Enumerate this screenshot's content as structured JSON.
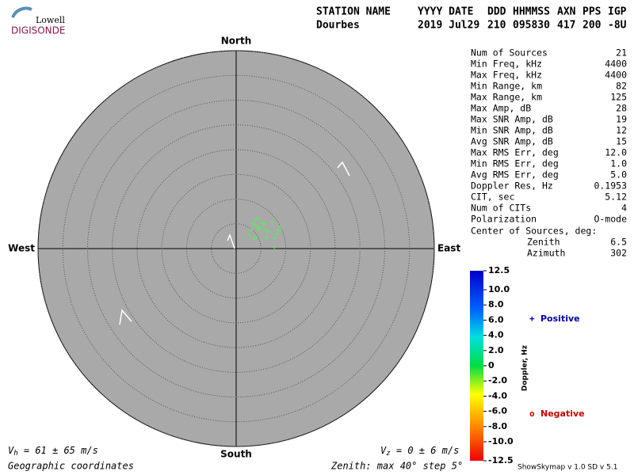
{
  "header": {
    "logo_top": "Lowell",
    "logo_bottom": "DIGISONDE",
    "labels": [
      "STATION NAME",
      "YYYY DATE",
      "DDD",
      "HHMMSS",
      "AXN",
      "PPS",
      "IGP"
    ],
    "values": [
      "Dourbes",
      "2019 Jul29",
      "210",
      "095830",
      "417",
      "200",
      "-8U"
    ]
  },
  "directions": {
    "north": "North",
    "south": "South",
    "east": "East",
    "west": "West"
  },
  "stats": [
    [
      "Num of Sources",
      "21"
    ],
    [
      "Min Freq, kHz",
      "4400"
    ],
    [
      "Max Freq, kHz",
      "4400"
    ],
    [
      "Min Range, km",
      "82"
    ],
    [
      "Max Range, km",
      "125"
    ],
    [
      "Max Amp, dB",
      "28"
    ],
    [
      "Max SNR Amp, dB",
      "19"
    ],
    [
      "Min SNR Amp, dB",
      "12"
    ],
    [
      "Avg SNR Amp, dB",
      "15"
    ],
    [
      "Max RMS Err, deg",
      "12.0"
    ],
    [
      "Min RMS Err, deg",
      "1.0"
    ],
    [
      "Avg RMS Err, deg",
      "5.0"
    ],
    [
      "Doppler Res, Hz",
      "0.1953"
    ],
    [
      "CIT, sec",
      "5.12"
    ],
    [
      "Num of CITs",
      "4"
    ],
    [
      "Polarization",
      "O-mode"
    ]
  ],
  "center_title": "Center of Sources, deg:",
  "center": [
    [
      "Zenith",
      "6.5"
    ],
    [
      "Azimuth",
      "302"
    ]
  ],
  "footer": {
    "vh": [
      "V",
      "h",
      " = 61 ± 65 m/s"
    ],
    "vz": [
      "V",
      "z",
      " = 0 ± 6 m/s"
    ],
    "coords": "Geographic coordinates",
    "zenith": "Zenith: max 40°  step 5°",
    "version": "ShowSkymap v 1.0   SD v 5.1"
  },
  "legend": [
    {
      "symbol": "+",
      "name": "Positive",
      "color": "#0000aa"
    },
    {
      "symbol": "o",
      "name": "Negative",
      "color": "#cc0000"
    }
  ],
  "chart_data": {
    "type": "skymap",
    "rlim": [
      0,
      40
    ],
    "rings": [
      5,
      10,
      15,
      20,
      25,
      30,
      35,
      40
    ],
    "color": "#55ee55",
    "x": [
      3.8,
      4.3,
      3.5,
      4.8,
      4.5,
      3.2,
      5.9,
      7.2,
      8.6,
      9.0,
      2.6,
      4.0,
      3.7,
      6.1,
      7.8,
      7.7,
      5.6,
      6.4,
      5.1,
      8.3,
      4.2
    ],
    "values": [
      5.8,
      6.1,
      5.0,
      4.2,
      3.8,
      3.8,
      3.8,
      5.4,
      3.8,
      4.2,
      2.7,
      2.2,
      1.9,
      2.1,
      2.2,
      0.2,
      5.0,
      3.4,
      5.3,
      3.0,
      4.5
    ],
    "colorbar": {
      "label": "Doppler, Hz",
      "lim": [
        -12.5,
        12.5
      ],
      "ticks": [
        12.5,
        {
          "value": 10,
          "label": "10.0"
        },
        {
          "value": 8,
          "label": "8.0"
        },
        {
          "value": 6,
          "label": "6.0"
        },
        {
          "value": 4,
          "label": "4.0"
        },
        {
          "value": 2,
          "label": "2.0"
        },
        0,
        {
          "value": -2,
          "label": "-2.0"
        },
        {
          "value": -4,
          "label": "-4.0"
        },
        {
          "value": -6,
          "label": "-6.0"
        },
        {
          "value": -8,
          "label": "-8.0"
        },
        {
          "value": -10,
          "label": "-10.0"
        },
        -12.5
      ]
    }
  }
}
